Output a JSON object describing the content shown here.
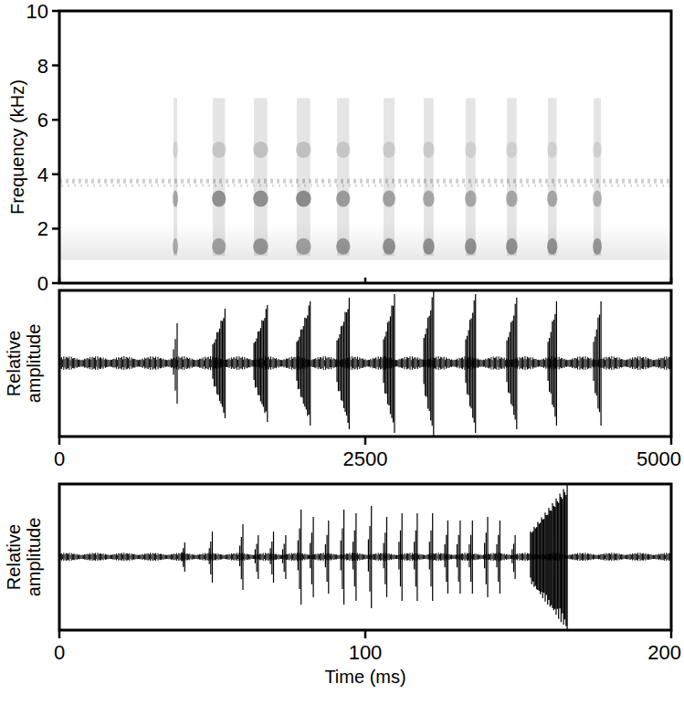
{
  "chart_data": [
    {
      "type": "spectrogram",
      "y_label": "Frequency (kHz)",
      "xlim": [
        0,
        5000
      ],
      "xticks": [
        0,
        2500,
        5000
      ],
      "ylim": [
        0,
        10
      ],
      "yticks": [
        0,
        2,
        4,
        6,
        8,
        10
      ],
      "tick_labels": "y",
      "x": [
        933,
        1254,
        1590,
        1940,
        2269,
        2649,
        2978,
        3321,
        3657,
        3993,
        4366
      ],
      "duration": [
        30,
        100,
        110,
        110,
        100,
        90,
        80,
        80,
        80,
        70,
        60
      ],
      "bands": [
        1.35,
        3.1,
        4.9
      ],
      "intensity": [
        [
          0.5,
          0.6,
          0.2
        ],
        [
          0.6,
          0.8,
          0.3
        ],
        [
          0.7,
          0.8,
          0.35
        ],
        [
          0.6,
          0.85,
          0.35
        ],
        [
          0.7,
          0.7,
          0.3
        ],
        [
          0.75,
          0.65,
          0.25
        ],
        [
          0.75,
          0.6,
          0.25
        ],
        [
          0.75,
          0.6,
          0.2
        ],
        [
          0.75,
          0.6,
          0.2
        ],
        [
          0.75,
          0.6,
          0.2
        ],
        [
          0.7,
          0.5,
          0.2
        ]
      ],
      "streak": [
        1.0,
        6.8
      ],
      "tone": 3.75,
      "noise_band": [
        0.85,
        2.2
      ]
    },
    {
      "type": "waveform",
      "y_label": "Relative amplitude",
      "xlim": [
        0,
        5000
      ],
      "xticks": [
        0,
        2500,
        5000
      ],
      "ylim": [
        -1,
        1
      ],
      "tick_labels": "x",
      "x": [
        933,
        1254,
        1590,
        1940,
        2269,
        2649,
        2978,
        3321,
        3657,
        3993,
        4366
      ],
      "duration": [
        30,
        100,
        110,
        110,
        100,
        90,
        80,
        80,
        80,
        70,
        60
      ],
      "values": [
        0.55,
        0.75,
        0.8,
        0.85,
        0.9,
        0.95,
        1.0,
        0.95,
        0.9,
        0.85,
        0.85
      ],
      "noise": 0.1
    },
    {
      "type": "waveform",
      "y_label": "Relative amplitude",
      "x_label": "Time (ms)",
      "xlim": [
        0,
        200
      ],
      "xticks": [
        0,
        100,
        200
      ],
      "ylim": [
        -1,
        1
      ],
      "tick_labels": "x",
      "x": [
        40,
        49,
        59,
        64,
        69,
        73,
        78,
        82,
        87,
        92,
        96,
        101,
        106,
        111,
        116,
        121,
        126,
        130,
        134,
        139,
        143,
        148,
        154
      ],
      "duration": [
        1,
        1,
        1,
        1,
        1,
        1,
        1,
        1,
        1,
        1,
        1,
        1,
        1,
        1,
        1,
        1,
        1,
        1,
        1,
        1,
        1,
        1,
        12
      ],
      "values": [
        0.2,
        0.35,
        0.45,
        0.3,
        0.35,
        0.3,
        0.65,
        0.55,
        0.5,
        0.65,
        0.6,
        0.7,
        0.55,
        0.6,
        0.6,
        0.6,
        0.5,
        0.5,
        0.5,
        0.55,
        0.5,
        0.3,
        1.0
      ],
      "noise": 0.06
    }
  ]
}
